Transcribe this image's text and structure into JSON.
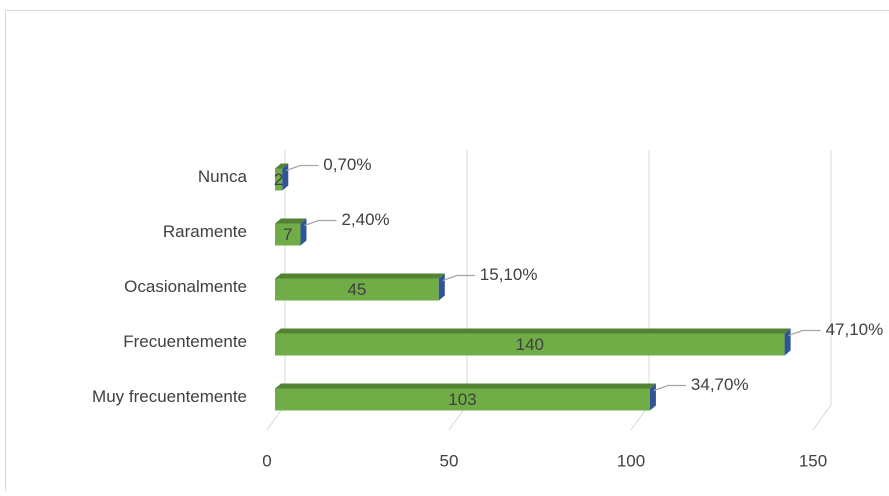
{
  "chart_data": {
    "type": "bar3d",
    "orientation": "horizontal",
    "categories": [
      "Muy frecuentemente",
      "Frecuentemente",
      "Ocasionalmente",
      "Raramente",
      "Nunca"
    ],
    "values": [
      103,
      140,
      45,
      7,
      2
    ],
    "percent_labels": [
      "34,70%",
      "47,10%",
      "15,10%",
      "2,40%",
      "0,70%"
    ],
    "color": "#70ad47",
    "side_color": "#2f5597",
    "xlim": [
      0,
      150
    ],
    "xticks": [
      0,
      50,
      100,
      150
    ],
    "grid": true
  }
}
